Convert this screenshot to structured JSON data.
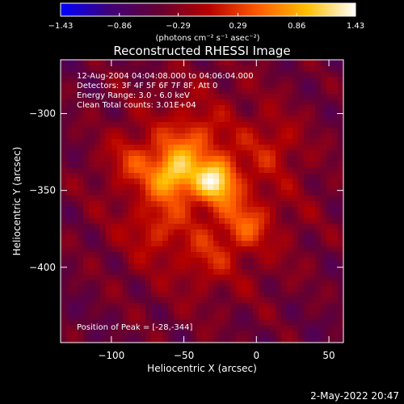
{
  "chart_data": {
    "type": "heatmap",
    "title": "Reconstructed RHESSI Image",
    "xlabel": "Heliocentric X (arcsec)",
    "ylabel": "Heliocentric Y (arcsec)",
    "xlim": [
      -135,
      60
    ],
    "ylim": [
      -449,
      -265
    ],
    "x_ticks": [
      {
        "value": -100,
        "label": "−100"
      },
      {
        "value": -50,
        "label": "−50"
      },
      {
        "value": 0,
        "label": "0"
      },
      {
        "value": 50,
        "label": "50"
      }
    ],
    "y_ticks": [
      {
        "value": -300,
        "label": "−300"
      },
      {
        "value": -350,
        "label": "−350"
      },
      {
        "value": -400,
        "label": "−400"
      }
    ],
    "colorbar": {
      "range": [
        -1.43,
        1.43
      ],
      "ticks": [
        {
          "value": -1.43,
          "label": "−1.43"
        },
        {
          "value": -0.86,
          "label": "−0.86"
        },
        {
          "value": -0.29,
          "label": "−0.29"
        },
        {
          "value": 0.29,
          "label": "0.29"
        },
        {
          "value": 0.86,
          "label": "0.86"
        },
        {
          "value": 1.43,
          "label": "1.43"
        }
      ],
      "unit_label": "(photons cm⁻² s⁻¹ asec⁻²)",
      "stops": [
        "#0000ff",
        "#400078",
        "#640032",
        "#b40000",
        "#ff5a00",
        "#ffbe00",
        "#ffffff"
      ]
    },
    "annotations": [
      "12-Aug-2004 04:04:08.000 to 04:06:04.000",
      "Detectors: 3F 4F 5F 6F 7F 8F, Att 0",
      "Energy Range: 3.0 - 6.0 keV",
      "Clean    Total counts: 3.01E+04"
    ],
    "peak_label": "Position of Peak = [-28,-344]",
    "peak": [
      -28,
      -344
    ],
    "sources": [
      {
        "x": -28,
        "y": -344,
        "amp": 1.25,
        "sigma": 10
      },
      {
        "x": -58,
        "y": -340,
        "amp": 1.1,
        "sigma": 11
      },
      {
        "x": -8,
        "y": -373,
        "amp": 0.55,
        "sigma": 11
      },
      {
        "x": -45,
        "y": -318,
        "amp": 0.5,
        "sigma": 13
      },
      {
        "x": -85,
        "y": -330,
        "amp": 0.45,
        "sigma": 12
      },
      {
        "x": -70,
        "y": -375,
        "amp": 0.35,
        "sigma": 12
      },
      {
        "x": -35,
        "y": -395,
        "amp": 0.3,
        "sigma": 11
      },
      {
        "x": 12,
        "y": -320,
        "amp": 0.3,
        "sigma": 12
      }
    ]
  },
  "footer": {
    "date": "2-May-2022 20:47"
  }
}
